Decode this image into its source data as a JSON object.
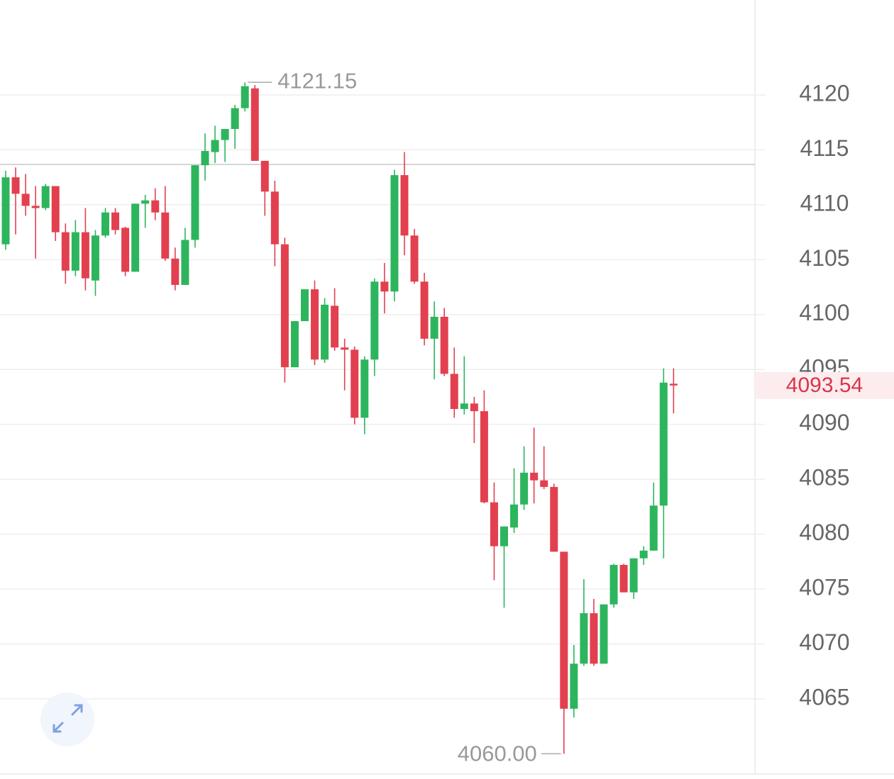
{
  "chart_data": {
    "type": "candlestick",
    "open": [
      4106.4,
      4112.5,
      4111.0,
      4109.9,
      4109.7,
      4111.7,
      4107.5,
      4104.0,
      4107.5,
      4103.1,
      4107.2,
      4109.3,
      4107.9,
      4103.9,
      4110.1,
      4110.4,
      4109.3,
      4105.1,
      4102.7,
      4106.8,
      4113.6,
      4114.8,
      4115.9,
      4116.9,
      4118.8,
      4120.6,
      4114.0,
      4111.2,
      4106.4,
      4095.2,
      4099.4,
      4102.3,
      4095.9,
      4100.8,
      4097.0,
      4096.8,
      4090.6,
      4095.9,
      4103.0,
      4102.1,
      4112.7,
      4107.2,
      4103.0,
      4097.8,
      4099.8,
      4094.6,
      4091.4,
      4091.9,
      4091.2,
      4082.9,
      4078.9,
      4080.6,
      4082.7,
      4085.6,
      4084.9,
      4084.3,
      4078.4,
      4064.1,
      4068.2,
      4072.8,
      4068.2,
      4073.6,
      4077.2,
      4074.7,
      4077.8,
      4078.5,
      4082.6,
      4093.7
    ],
    "high": [
      4113.1,
      4113.4,
      4112.8,
      4111.7,
      4111.9,
      4111.7,
      4108.3,
      4108.6,
      4109.7,
      4107.7,
      4109.7,
      4109.7,
      4108.0,
      4110.1,
      4110.9,
      4111.5,
      4111.7,
      4106.1,
      4107.9,
      4113.6,
      4116.5,
      4117.2,
      4116.9,
      4119.1,
      4121.15,
      4120.9,
      4114.0,
      4112.2,
      4107.0,
      4099.4,
      4102.3,
      4103.1,
      4101.5,
      4102.4,
      4097.8,
      4097.1,
      4096.2,
      4103.3,
      4104.7,
      4113.2,
      4114.8,
      4107.8,
      4103.8,
      4101.2,
      4100.6,
      4097.0,
      4096.2,
      4092.5,
      4093.1,
      4084.7,
      4080.7,
      4086.0,
      4088.0,
      4089.7,
      4088.0,
      4084.6,
      4078.4,
      4069.9,
      4075.9,
      4074.1,
      4073.6,
      4077.3,
      4077.3,
      4077.8,
      4078.9,
      4084.7,
      4095.1,
      4095.1
    ],
    "low": [
      4105.9,
      4107.3,
      4109.0,
      4105.1,
      4109.5,
      4106.7,
      4102.8,
      4103.5,
      4102.2,
      4101.7,
      4107.0,
      4107.3,
      4103.5,
      4103.9,
      4107.9,
      4108.6,
      4104.9,
      4102.2,
      4102.7,
      4106.1,
      4112.2,
      4113.8,
      4113.9,
      4115.1,
      4118.5,
      4114.0,
      4109.0,
      4104.4,
      4093.8,
      4095.2,
      4099.4,
      4095.4,
      4095.6,
      4096.7,
      4093.1,
      4090.0,
      4089.1,
      4094.4,
      4100.1,
      4101.2,
      4105.4,
      4102.8,
      4097.2,
      4094.1,
      4094.4,
      4090.6,
      4090.9,
      4088.3,
      4082.8,
      4075.8,
      4073.3,
      4080.1,
      4082.2,
      4082.8,
      4084.1,
      4078.4,
      4060.0,
      4063.3,
      4068.0,
      4068.0,
      4068.2,
      4073.3,
      4074.7,
      4074.1,
      4077.2,
      4078.5,
      4077.8,
      4091.0
    ],
    "close": [
      4112.5,
      4111.0,
      4109.9,
      4109.7,
      4111.7,
      4107.5,
      4104.0,
      4107.5,
      4103.3,
      4107.2,
      4109.3,
      4107.7,
      4103.9,
      4110.1,
      4110.4,
      4109.3,
      4105.1,
      4102.7,
      4106.8,
      4113.6,
      4114.9,
      4115.9,
      4116.9,
      4118.8,
      4120.8,
      4114.0,
      4111.2,
      4106.4,
      4095.2,
      4099.4,
      4102.3,
      4095.9,
      4100.9,
      4097.0,
      4096.8,
      4090.6,
      4095.9,
      4103.0,
      4102.1,
      4112.7,
      4107.2,
      4103.0,
      4097.8,
      4099.8,
      4094.6,
      4091.4,
      4091.9,
      4091.2,
      4082.9,
      4078.9,
      4080.7,
      4082.7,
      4085.6,
      4084.9,
      4084.3,
      4078.4,
      4064.1,
      4068.2,
      4072.8,
      4068.2,
      4073.6,
      4077.2,
      4074.7,
      4077.8,
      4078.5,
      4082.6,
      4093.8,
      4093.54
    ],
    "up_color": "#2db55d",
    "down_color": "#e2404f",
    "ylim": [
      4058.28,
      4128.65
    ],
    "yticks": [
      4065,
      4070,
      4075,
      4080,
      4085,
      4090,
      4095,
      4100,
      4105,
      4110,
      4115,
      4120
    ],
    "grid": true,
    "reference_line": 4113.67,
    "high_label": 4121.15,
    "low_label": {
      "value": 4060,
      "label": "4060.00"
    },
    "last_price": 4093.54
  }
}
